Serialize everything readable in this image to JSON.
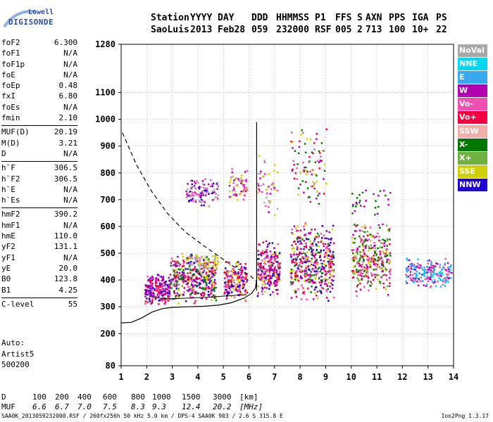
{
  "logo": {
    "line1": "Lowell",
    "line2": "DIGISONDE"
  },
  "header": {
    "row1": [
      "Station",
      "YYYY",
      "DAY",
      "DDD",
      "HHMMSS",
      "P1",
      "FFS",
      "S",
      "AXN",
      "PPS",
      "IGA",
      "PS"
    ],
    "row2": [
      "SaoLuis",
      "2013",
      "Feb28",
      "059",
      "232000",
      "RSF",
      "005",
      "2",
      "713",
      "100",
      "10+",
      "22"
    ]
  },
  "params_groups": [
    [
      {
        "name": "foF2",
        "value": "6.300"
      },
      {
        "name": "foF1",
        "value": "N/A"
      },
      {
        "name": "foF1p",
        "value": "N/A"
      },
      {
        "name": "foE",
        "value": "N/A"
      },
      {
        "name": "foEp",
        "value": "0.48"
      },
      {
        "name": "fxI",
        "value": "6.80"
      },
      {
        "name": "foEs",
        "value": "N/A"
      },
      {
        "name": "fmin",
        "value": "2.10"
      }
    ],
    [
      {
        "name": "MUF(D)",
        "value": "20.19"
      },
      {
        "name": "M(D)",
        "value": "3.21"
      },
      {
        "name": "D",
        "value": "N/A"
      }
    ],
    [
      {
        "name": "h`F",
        "value": "306.5"
      },
      {
        "name": "h`F2",
        "value": "306.5"
      },
      {
        "name": "h`E",
        "value": "N/A"
      },
      {
        "name": "h`Es",
        "value": "N/A"
      }
    ],
    [
      {
        "name": "hmF2",
        "value": "390.2"
      },
      {
        "name": "hmF1",
        "value": "N/A"
      },
      {
        "name": "hmE",
        "value": "110.0"
      },
      {
        "name": "yF2",
        "value": "131.1"
      },
      {
        "name": "yF1",
        "value": "N/A"
      },
      {
        "name": "yE",
        "value": "20.0"
      },
      {
        "name": "B0",
        "value": "123.8"
      },
      {
        "name": "B1",
        "value": "4.25"
      }
    ],
    [
      {
        "name": "C-level",
        "value": "55"
      }
    ]
  ],
  "autoscaling": {
    "line1": "Auto:",
    "line2": "Artist5",
    "line3": "500200"
  },
  "legend": [
    {
      "label": "NoVal",
      "color": "#a8a8a8"
    },
    {
      "label": "NNE",
      "color": "#00d8f0"
    },
    {
      "label": "E",
      "color": "#38a8f0"
    },
    {
      "label": "W",
      "color": "#b000b0"
    },
    {
      "label": "Vo-",
      "color": "#f050b0"
    },
    {
      "label": "Vo+",
      "color": "#f00040"
    },
    {
      "label": "SSW",
      "color": "#f0b0a8"
    },
    {
      "label": "X-",
      "color": "#007800"
    },
    {
      "label": "X+",
      "color": "#70b040"
    },
    {
      "label": "SSE",
      "color": "#d0d000"
    },
    {
      "label": "NNW",
      "color": "#2000d0"
    }
  ],
  "dmuf": {
    "d_label": "D",
    "d_values": [
      "100",
      "200",
      "400",
      "600",
      "800",
      "1000",
      "1500",
      "3000",
      "[km]"
    ],
    "muf_label": "MUF",
    "muf_values": [
      "6.6",
      "6.7",
      "7.0",
      "7.5",
      "8.3",
      "9.3",
      "12.4",
      "20.2",
      "[MHz]"
    ]
  },
  "footer": {
    "text": "SAA0K_2013059232000.RSF / 260fx256h 50 kHz 5.0 km / DPS-4 SAA0K 903 / 2.6 S 315.8 E",
    "version": "Ion2Png 1.3.17"
  },
  "chart_data": {
    "type": "scatter",
    "xlim": [
      1,
      14
    ],
    "ylim": [
      80,
      1280
    ],
    "x_ticks": [
      1,
      2,
      3,
      4,
      5,
      6,
      7,
      8,
      9,
      10,
      11,
      12,
      13,
      14
    ],
    "y_ticks": [
      80,
      200,
      300,
      400,
      500,
      600,
      700,
      800,
      900,
      1000,
      1100,
      1280
    ],
    "grid": "dotted",
    "legend_position": "right",
    "clusters": [
      {
        "f": [
          1.9,
          2.9
        ],
        "h": [
          305,
          430
        ],
        "colors": [
          "#f00040",
          "#b000b0",
          "#f050b0",
          "#2000d0"
        ],
        "density": 220
      },
      {
        "f": [
          2.9,
          4.7
        ],
        "h": [
          310,
          510
        ],
        "colors": [
          "#f00040",
          "#b000b0",
          "#f050b0",
          "#2000d0",
          "#d0d000",
          "#007800"
        ],
        "density": 420
      },
      {
        "f": [
          3.6,
          4.8
        ],
        "h": [
          430,
          500
        ],
        "colors": [
          "#d0d000",
          "#a8a8a8"
        ],
        "density": 60
      },
      {
        "f": [
          3.5,
          4.8
        ],
        "h": [
          670,
          790
        ],
        "colors": [
          "#b000b0",
          "#f050b0",
          "#2000d0",
          "#a8a8a8"
        ],
        "density": 110
      },
      {
        "f": [
          5.0,
          5.9
        ],
        "h": [
          320,
          480
        ],
        "colors": [
          "#f00040",
          "#b000b0",
          "#2000d0",
          "#f050b0",
          "#d0d000"
        ],
        "density": 200
      },
      {
        "f": [
          5.2,
          5.9
        ],
        "h": [
          680,
          830
        ],
        "colors": [
          "#f050b0",
          "#d0d000",
          "#b000b0"
        ],
        "density": 60
      },
      {
        "f": [
          6.3,
          7.2
        ],
        "h": [
          325,
          560
        ],
        "colors": [
          "#f00040",
          "#b000b0",
          "#d0d000",
          "#2000d0",
          "#f050b0"
        ],
        "density": 260
      },
      {
        "f": [
          6.3,
          7.1
        ],
        "h": [
          620,
          880
        ],
        "colors": [
          "#d0d000",
          "#f050b0",
          "#b000b0",
          "#a8a8a8"
        ],
        "density": 50
      },
      {
        "f": [
          7.6,
          9.3
        ],
        "h": [
          320,
          620
        ],
        "colors": [
          "#d0d000",
          "#f00040",
          "#b000b0",
          "#f050b0",
          "#2000d0",
          "#007800"
        ],
        "density": 460
      },
      {
        "f": [
          7.6,
          9.0
        ],
        "h": [
          640,
          980
        ],
        "colors": [
          "#b000b0",
          "#d0d000",
          "#f00040",
          "#007800",
          "#f050b0"
        ],
        "density": 90
      },
      {
        "f": [
          10.0,
          11.5
        ],
        "h": [
          340,
          630
        ],
        "colors": [
          "#b000b0",
          "#f050b0",
          "#d0d000",
          "#007800",
          "#f00040",
          "#70b040"
        ],
        "density": 340
      },
      {
        "f": [
          10.0,
          11.5
        ],
        "h": [
          640,
          760
        ],
        "colors": [
          "#b000b0",
          "#007800"
        ],
        "density": 30
      },
      {
        "f": [
          12.1,
          13.9
        ],
        "h": [
          370,
          490
        ],
        "colors": [
          "#00d8f0",
          "#38a8f0",
          "#b000b0",
          "#f050b0"
        ],
        "density": 220
      }
    ],
    "trace_dashed": [
      {
        "f": 1.05,
        "h": 950
      },
      {
        "f": 1.6,
        "h": 830
      },
      {
        "f": 2.2,
        "h": 730
      },
      {
        "f": 2.8,
        "h": 650
      },
      {
        "f": 3.5,
        "h": 580
      },
      {
        "f": 4.2,
        "h": 530
      },
      {
        "f": 4.8,
        "h": 490
      },
      {
        "f": 5.4,
        "h": 450
      },
      {
        "f": 6.0,
        "h": 420
      },
      {
        "f": 6.3,
        "h": 395
      }
    ],
    "trace_profile": [
      {
        "f": 1.0,
        "h": 240
      },
      {
        "f": 1.4,
        "h": 242
      },
      {
        "f": 1.8,
        "h": 258
      },
      {
        "f": 2.2,
        "h": 280
      },
      {
        "f": 2.6,
        "h": 293
      },
      {
        "f": 3.0,
        "h": 298
      },
      {
        "f": 3.6,
        "h": 300
      },
      {
        "f": 4.2,
        "h": 302
      },
      {
        "f": 4.8,
        "h": 306
      },
      {
        "f": 5.3,
        "h": 315
      },
      {
        "f": 5.8,
        "h": 332
      },
      {
        "f": 6.1,
        "h": 350
      },
      {
        "f": 6.25,
        "h": 370
      },
      {
        "f": 6.3,
        "h": 400
      }
    ],
    "trace_lower": [
      {
        "f": 2.1,
        "h": 340
      },
      {
        "f": 2.5,
        "h": 332
      },
      {
        "f": 3.0,
        "h": 330
      },
      {
        "f": 3.5,
        "h": 332
      },
      {
        "f": 4.0,
        "h": 334
      },
      {
        "f": 4.5,
        "h": 336
      },
      {
        "f": 5.0,
        "h": 340
      },
      {
        "f": 5.5,
        "h": 343
      },
      {
        "f": 5.9,
        "h": 345
      }
    ],
    "fof2_line": {
      "f": 6.3,
      "h_from": 360,
      "h_to": 990
    }
  }
}
